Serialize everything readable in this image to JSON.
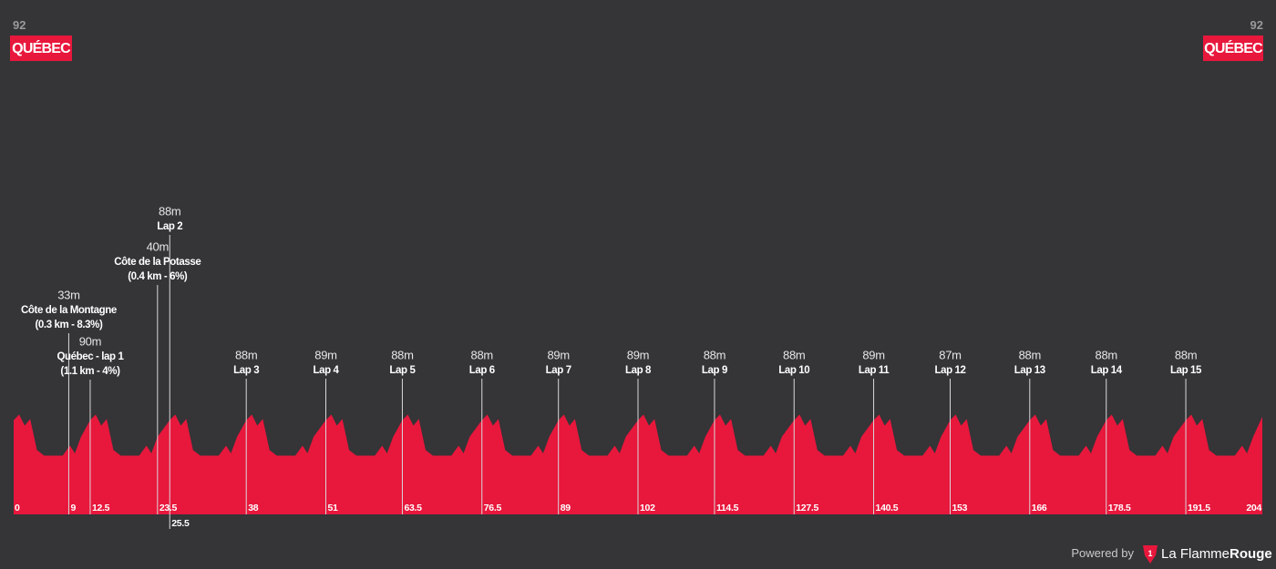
{
  "header": {
    "start": {
      "elevation": "92",
      "place": "QUÉBEC"
    },
    "finish": {
      "elevation": "92",
      "place": "QUÉBEC"
    }
  },
  "chart_data": {
    "type": "area",
    "color": "#e8173c",
    "x": [
      0,
      0.9,
      1.8,
      2.7,
      3.8,
      5,
      8,
      9.2,
      10,
      11,
      12.5,
      13.4,
      14.3,
      15.2,
      16.3,
      17.5,
      20.5,
      21.7,
      22.5,
      23.5,
      25.5,
      26.4,
      27.3,
      28.2,
      29.3,
      30.5,
      33.5,
      34.7,
      35.5,
      36.5,
      38,
      38.9,
      39.8,
      40.7,
      41.8,
      43,
      46,
      47.2,
      48,
      49,
      51,
      51.9,
      52.8,
      53.7,
      54.8,
      56,
      59,
      60.2,
      61,
      62,
      63.5,
      64.4,
      65.3,
      66.2,
      67.3,
      68.5,
      71.5,
      72.7,
      73.5,
      74.5,
      76.5,
      77.4,
      78.3,
      79.2,
      80.3,
      81.5,
      84.5,
      85.7,
      86.5,
      87.5,
      89,
      89.9,
      90.8,
      91.7,
      92.8,
      94,
      97,
      98.2,
      99,
      100,
      102,
      102.9,
      103.8,
      104.7,
      105.8,
      107,
      110,
      111.2,
      112,
      113,
      114.5,
      115.4,
      116.3,
      117.2,
      118.3,
      119.5,
      122.5,
      123.7,
      124.5,
      125.5,
      127.5,
      128.4,
      129.3,
      130.2,
      131.3,
      132.5,
      135.5,
      136.7,
      137.5,
      138.5,
      140.5,
      141.4,
      142.3,
      143.2,
      144.3,
      145.5,
      148.5,
      149.7,
      150.5,
      151.5,
      153,
      153.9,
      154.8,
      155.7,
      156.8,
      158,
      161,
      162.2,
      163,
      164,
      166,
      166.9,
      167.8,
      168.7,
      169.8,
      171,
      174,
      175.2,
      176,
      177,
      178.5,
      179.4,
      180.3,
      181.2,
      182.3,
      183.5,
      186.5,
      187.7,
      188.5,
      189.5,
      191.5,
      192.4,
      193.3,
      194.2,
      195.3,
      196.5,
      199.5,
      200.7,
      201.5,
      202.5,
      204
    ],
    "values": [
      85,
      90,
      80,
      86,
      58,
      53,
      53,
      62,
      55,
      70,
      85,
      90,
      80,
      86,
      58,
      53,
      53,
      62,
      55,
      70,
      85,
      90,
      80,
      86,
      58,
      53,
      53,
      62,
      55,
      70,
      85,
      90,
      80,
      86,
      58,
      53,
      53,
      62,
      55,
      70,
      85,
      90,
      80,
      86,
      58,
      53,
      53,
      62,
      55,
      70,
      85,
      90,
      80,
      86,
      58,
      53,
      53,
      62,
      55,
      70,
      85,
      90,
      80,
      86,
      58,
      53,
      53,
      62,
      55,
      70,
      85,
      90,
      80,
      86,
      58,
      53,
      53,
      62,
      55,
      70,
      85,
      90,
      80,
      86,
      58,
      53,
      53,
      62,
      55,
      70,
      85,
      90,
      80,
      86,
      58,
      53,
      53,
      62,
      55,
      70,
      85,
      90,
      80,
      86,
      58,
      53,
      53,
      62,
      55,
      70,
      85,
      90,
      80,
      86,
      58,
      53,
      53,
      62,
      55,
      70,
      85,
      90,
      80,
      86,
      58,
      53,
      53,
      62,
      55,
      70,
      85,
      90,
      80,
      86,
      58,
      53,
      53,
      62,
      55,
      70,
      85,
      90,
      80,
      86,
      58,
      53,
      53,
      62,
      55,
      70,
      85,
      90,
      80,
      86,
      58,
      53,
      53,
      62,
      55,
      70,
      88
    ],
    "xlim": [
      0,
      204
    ],
    "ylim": [
      0,
      110
    ],
    "xticks": [
      0,
      9,
      12.5,
      23.5,
      25.5,
      38,
      51,
      63.5,
      76.5,
      89,
      102,
      114.5,
      127.5,
      140.5,
      153,
      166,
      178.5,
      191.5,
      204
    ],
    "markers": [
      {
        "km": 9,
        "elevation": "33m",
        "name": "Côte de la Montagne",
        "detail": "(0.3 km - 8.3%)"
      },
      {
        "km": 12.5,
        "elevation": "90m",
        "name": "Québec - lap 1",
        "detail": "(1.1 km - 4%)"
      },
      {
        "km": 23.5,
        "elevation": "40m",
        "name": "Côte de la Potasse",
        "detail": "(0.4 km - 6%)"
      },
      {
        "km": 25.5,
        "elevation": "88m",
        "name": "Lap 2"
      },
      {
        "km": 38,
        "elevation": "88m",
        "name": "Lap 3"
      },
      {
        "km": 51,
        "elevation": "89m",
        "name": "Lap 4"
      },
      {
        "km": 63.5,
        "elevation": "88m",
        "name": "Lap 5"
      },
      {
        "km": 76.5,
        "elevation": "88m",
        "name": "Lap 6"
      },
      {
        "km": 89,
        "elevation": "89m",
        "name": "Lap 7"
      },
      {
        "km": 102,
        "elevation": "89m",
        "name": "Lap 8"
      },
      {
        "km": 114.5,
        "elevation": "88m",
        "name": "Lap 9"
      },
      {
        "km": 127.5,
        "elevation": "88m",
        "name": "Lap 10"
      },
      {
        "km": 140.5,
        "elevation": "89m",
        "name": "Lap 11"
      },
      {
        "km": 153,
        "elevation": "87m",
        "name": "Lap 12"
      },
      {
        "km": 166,
        "elevation": "88m",
        "name": "Lap 13"
      },
      {
        "km": 178.5,
        "elevation": "88m",
        "name": "Lap 14"
      },
      {
        "km": 191.5,
        "elevation": "88m",
        "name": "Lap 15"
      }
    ]
  },
  "footer": {
    "powered": "Powered by",
    "logo_number": "1",
    "brand": "La Flamme",
    "brand_bold": "Rouge"
  }
}
